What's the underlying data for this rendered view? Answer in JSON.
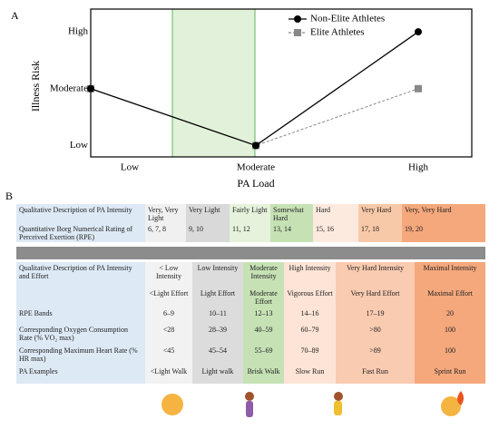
{
  "chart_data": {
    "type": "line",
    "panel": "A",
    "xlabel": "PA Load",
    "ylabel": "Illness Risk",
    "categories": [
      "Low",
      "Moderate",
      "High"
    ],
    "ylim": [
      0.8,
      3.4
    ],
    "yticks": [
      {
        "value": 1,
        "label": "Low"
      },
      {
        "value": 2,
        "label": "Moderate"
      },
      {
        "value": 3,
        "label": "High"
      }
    ],
    "series": [
      {
        "name": "Non-Elite Athletes",
        "color": "#000000",
        "marker": "circle",
        "dashed": false,
        "values": [
          2,
          1,
          3
        ]
      },
      {
        "name": "Elite Athletes",
        "color": "#888888",
        "marker": "square",
        "dashed": true,
        "values": [
          2,
          1,
          2
        ]
      }
    ]
  },
  "table_a": {
    "panel": "B",
    "rows": [
      [
        "Qualitative Description of PA Intensity",
        "Very, Very Light",
        "Very Light",
        "Fairly Light",
        "Somewhat Hard",
        "Hard",
        "Very Hard",
        "Very, Very Hard"
      ],
      [
        "Quantitative Borg Numerical Rating of Perceived Exertion (RPE)",
        "6, 7, 8",
        "9, 10",
        "11, 12",
        "13, 14",
        "15, 16",
        "17, 18",
        "19, 20"
      ]
    ]
  },
  "table_b": {
    "header": [
      "Qualitative Description of PA Intensity and Effort",
      "< Low Intensity",
      "Low Intensity",
      "Moderate Intensity",
      "High Intensity",
      "Very Hard Intensity",
      "Maximal Intensity"
    ],
    "subheader": [
      "<Light Effort",
      "Light Effort",
      "Moderate Effort",
      "Vigorous Effort",
      "Very Hard Effort",
      "Maximal Effort"
    ],
    "rows": [
      [
        "RPE Bands",
        "6–9",
        "10–11",
        "12–13",
        "14–16",
        "17–19",
        "20"
      ],
      [
        "Corresponding Oxygen Consumption Rate (% VO₂ max)",
        "<28",
        "28–39",
        "40–59",
        "60–79",
        ">80",
        "100"
      ],
      [
        "Corresponding Maximum Heart Rate (% HR max)",
        "<45",
        "45–54",
        "55–69",
        "70–89",
        ">89",
        "100"
      ],
      [
        "PA Examples",
        "<Light Walk",
        "Light walk",
        "Brisk Walk",
        "Slow Run",
        "Fast Run",
        "Sprint Run"
      ]
    ]
  }
}
